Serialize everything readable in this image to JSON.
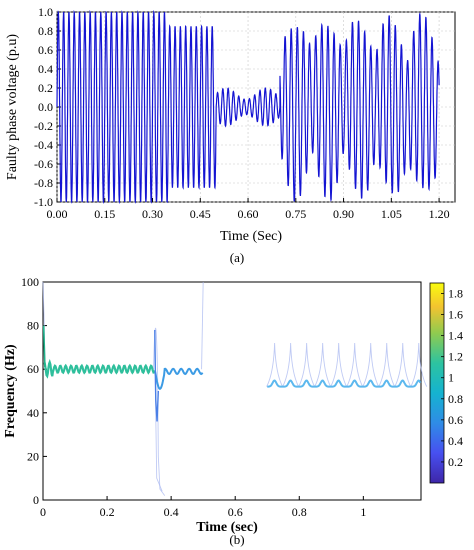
{
  "chart_data": [
    {
      "type": "line",
      "panel_label": "(a)",
      "xlabel": "Time (Sec)",
      "ylabel": "Faulty phase voltage (p.u)",
      "xlim": [
        0,
        1.25
      ],
      "ylim": [
        -1,
        1
      ],
      "x_ticks": [
        "0.00",
        "0.15",
        "0.30",
        "0.45",
        "0.60",
        "0.75",
        "0.90",
        "1.05",
        "1.20"
      ],
      "y_ticks": [
        "1.0",
        "0.8",
        "0.6",
        "0.4",
        "0.2",
        "0.0",
        "-0.2",
        "-0.4",
        "-0.6",
        "-0.8",
        "-1.0"
      ],
      "grid": true,
      "line_color": "#1414d2",
      "segments": [
        {
          "t_start": 0.0,
          "t_end": 0.35,
          "frequency_hz": 60,
          "amplitude_pu": 1.0
        },
        {
          "t_start": 0.35,
          "t_end": 0.5,
          "frequency_hz": 60,
          "amplitude_pu": 0.85
        },
        {
          "t_start": 0.5,
          "t_end": 0.7,
          "frequency_hz": 60,
          "amplitude_pu": 0.2
        },
        {
          "t_start": 0.7,
          "t_end": 1.2,
          "frequency_hz": 52,
          "amplitude_pu": 0.95
        }
      ]
    },
    {
      "type": "scatter",
      "panel_label": "(b)",
      "xlabel": "Time (sec)",
      "ylabel": "Frequency (Hz)",
      "xlim": [
        0,
        1.18
      ],
      "ylim": [
        0,
        100
      ],
      "x_ticks": [
        "0",
        "0.2",
        "0.4",
        "0.6",
        "0.8",
        "1"
      ],
      "y_ticks": [
        "100",
        "80",
        "60",
        "40",
        "20",
        "0"
      ],
      "colorbar_ticks": [
        "1.8",
        "1.6",
        "1.4",
        "1.2",
        "1",
        "0.8",
        "0.6",
        "0.4",
        "0.2"
      ],
      "colorbar_range": [
        0,
        1.9
      ],
      "series": [
        {
          "t_start": 0.0,
          "t_end": 0.35,
          "frequency_hz": 60,
          "intensity": 1.0
        },
        {
          "t_start": 0.35,
          "t_end": 0.5,
          "frequency_hz": 59,
          "intensity": 0.7
        },
        {
          "t_start": 0.7,
          "t_end": 1.18,
          "frequency_hz": 52,
          "intensity": 0.55
        }
      ]
    }
  ]
}
